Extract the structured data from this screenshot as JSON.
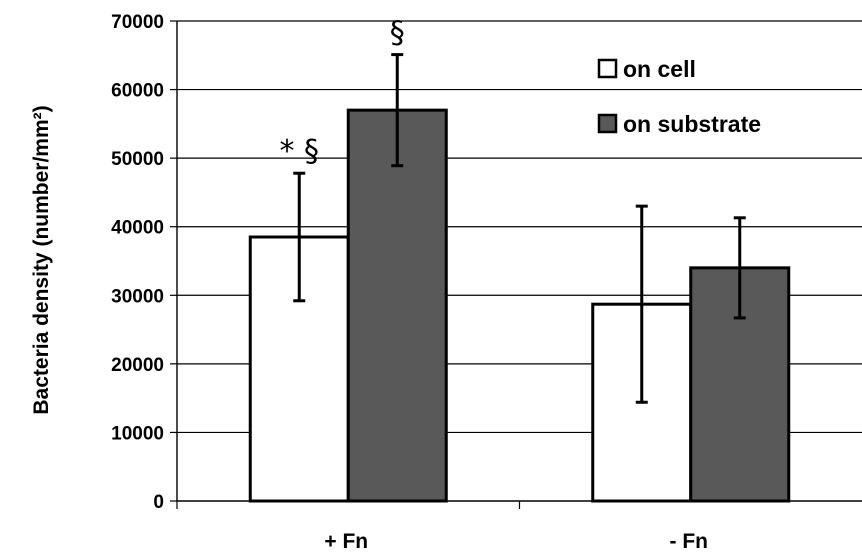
{
  "chart_data": {
    "type": "bar",
    "categories": [
      "+ Fn",
      "- Fn"
    ],
    "series": [
      {
        "name": "on cell",
        "color": "#ffffff",
        "values": [
          38500,
          28700
        ],
        "errors": [
          9300,
          14300
        ]
      },
      {
        "name": "on substrate",
        "color": "#595959",
        "values": [
          57000,
          34000
        ],
        "errors": [
          8100,
          7300
        ]
      }
    ],
    "ylabel": "Bacteria density (number/mm²)",
    "ylim": [
      0,
      70000
    ],
    "yticks": [
      0,
      10000,
      20000,
      30000,
      40000,
      50000,
      60000,
      70000
    ],
    "grid": true,
    "legend_position": "top-right",
    "annotations": [
      {
        "category": 0,
        "series": 0,
        "text": "* §"
      },
      {
        "category": 0,
        "series": 1,
        "text": "§"
      }
    ]
  }
}
